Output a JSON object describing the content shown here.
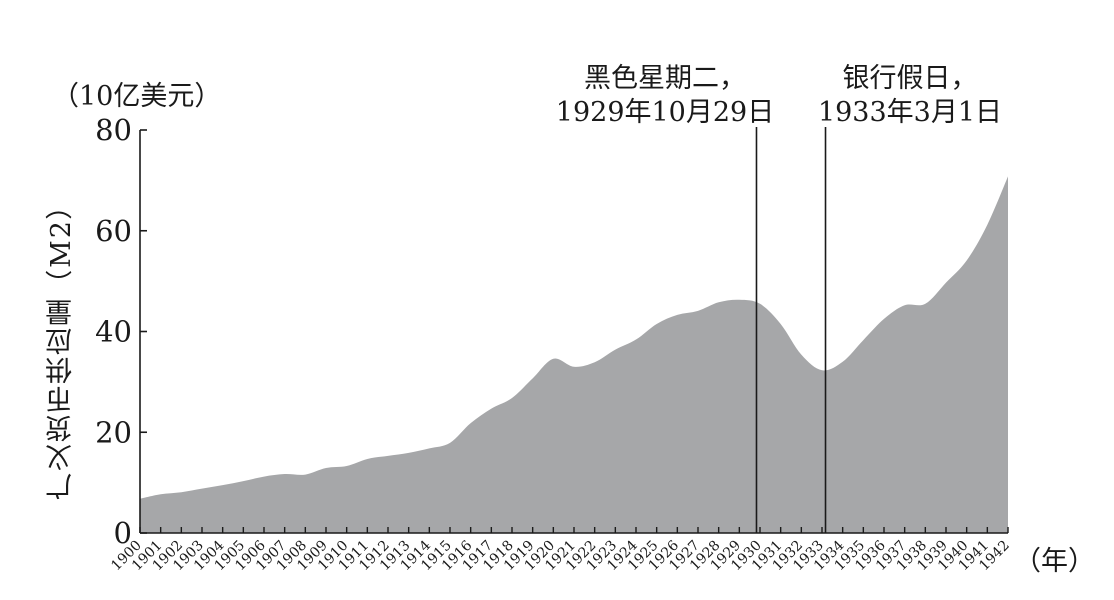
{
  "chart_data": {
    "type": "area",
    "unit_label": "（10亿美元）",
    "ylabel": "广义货币供应量（M2）",
    "xunit": "（年）",
    "ylim": [
      0,
      80
    ],
    "yticks": [
      "0",
      "20",
      "40",
      "60",
      "80"
    ],
    "x": [
      1900,
      1901,
      1902,
      1903,
      1904,
      1905,
      1906,
      1907,
      1908,
      1909,
      1910,
      1911,
      1912,
      1913,
      1914,
      1915,
      1916,
      1917,
      1918,
      1919,
      1920,
      1921,
      1922,
      1923,
      1924,
      1925,
      1926,
      1927,
      1928,
      1929,
      1930,
      1931,
      1932,
      1933,
      1934,
      1935,
      1936,
      1937,
      1938,
      1939,
      1940,
      1941,
      1942
    ],
    "xtick_labels": [
      "1900",
      "1901",
      "1902",
      "1903",
      "1904",
      "1905",
      "1906",
      "1907",
      "1908",
      "1909",
      "1910",
      "1911",
      "1912",
      "1913",
      "1914",
      "1915",
      "1916",
      "1917",
      "1918",
      "1919",
      "1920",
      "1921",
      "1922",
      "1923",
      "1924",
      "1925",
      "1926",
      "1927",
      "1928",
      "1929",
      "1930",
      "1931",
      "1932",
      "1933",
      "1934",
      "1935",
      "1936",
      "1937",
      "1938",
      "1939",
      "1940",
      "1941",
      "1942"
    ],
    "series": [
      {
        "values": [
          6.8,
          7.7,
          8.1,
          8.8,
          9.5,
          10.3,
          11.2,
          11.7,
          11.6,
          12.9,
          13.3,
          14.7,
          15.3,
          15.9,
          16.8,
          17.9,
          21.8,
          24.7,
          26.8,
          30.7,
          34.6,
          33.0,
          33.9,
          36.4,
          38.4,
          41.5,
          43.3,
          44.1,
          45.8,
          46.3,
          45.5,
          41.5,
          35.4,
          32.3,
          34.0,
          38.3,
          42.5,
          45.2,
          45.5,
          49.7,
          54.1,
          61.2,
          70.8
        ]
      }
    ],
    "annotations": [
      {
        "x": 1929.83,
        "line1": "黑色星期二，",
        "line2": "1929年10月29日"
      },
      {
        "x": 1933.17,
        "line1": "银行假日，",
        "line2": "1933年3月1日"
      }
    ],
    "grid": false,
    "colors": {
      "area": "#a6a7a9",
      "axis": "#1a1a1a"
    }
  }
}
